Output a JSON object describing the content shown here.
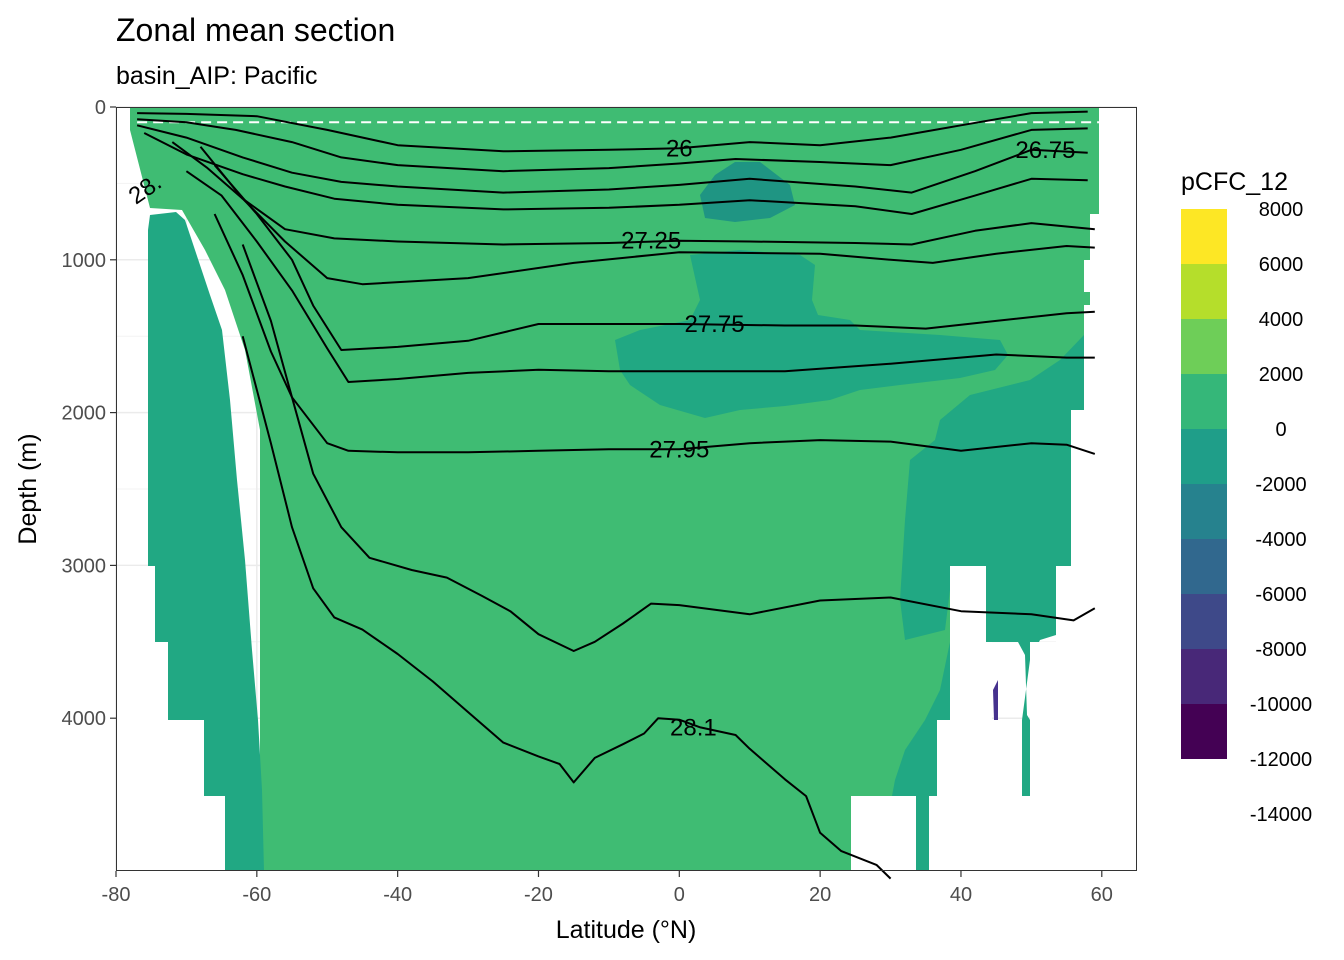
{
  "chart_data": {
    "type": "contour",
    "title": "Zonal mean section",
    "subtitle": "basin_AIP: Pacific",
    "xlabel": "Latitude (°N)",
    "ylabel": "Depth (m)",
    "xlim": [
      -80,
      65
    ],
    "ylim": [
      0,
      5000
    ],
    "y_reversed": true,
    "x_ticks": [
      -80,
      -60,
      -40,
      -20,
      0,
      20,
      40,
      60
    ],
    "y_ticks": [
      0,
      1000,
      2000,
      3000,
      4000
    ],
    "grid": true,
    "legend": {
      "title": "pCFC_12",
      "position": "right",
      "labels": [
        "8000",
        "6000",
        "4000",
        "2000",
        "0",
        "-2000",
        "-4000",
        "-6000",
        "-8000",
        "-10000",
        "-12000",
        "-14000"
      ],
      "colors": [
        "#fde725",
        "#b5de2b",
        "#6ece58",
        "#35b779",
        "#1f9e89",
        "#26828e",
        "#31688e",
        "#3e4989",
        "#482878",
        "#440154"
      ]
    },
    "reference_line": {
      "depth": 100,
      "style": "dashed",
      "color": "#ffffff"
    },
    "density_contours": [
      {
        "label": "26",
        "points": [
          [
            -77,
            40
          ],
          [
            -70,
            45
          ],
          [
            -60,
            60
          ],
          [
            -50,
            150
          ],
          [
            -40,
            250
          ],
          [
            -25,
            290
          ],
          [
            -10,
            280
          ],
          [
            0,
            270
          ],
          [
            10,
            230
          ],
          [
            20,
            250
          ],
          [
            30,
            200
          ],
          [
            40,
            120
          ],
          [
            50,
            40
          ],
          [
            58,
            30
          ]
        ]
      },
      {
        "label": "",
        "points": [
          [
            -77,
            80
          ],
          [
            -70,
            100
          ],
          [
            -63,
            150
          ],
          [
            -55,
            230
          ],
          [
            -48,
            330
          ],
          [
            -40,
            380
          ],
          [
            -25,
            420
          ],
          [
            -10,
            400
          ],
          [
            0,
            370
          ],
          [
            8,
            340
          ],
          [
            20,
            360
          ],
          [
            30,
            380
          ],
          [
            40,
            280
          ],
          [
            50,
            150
          ],
          [
            58,
            140
          ]
        ]
      },
      {
        "label": "26.75",
        "points": [
          [
            -77,
            120
          ],
          [
            -70,
            200
          ],
          [
            -62,
            330
          ],
          [
            -55,
            430
          ],
          [
            -48,
            490
          ],
          [
            -40,
            520
          ],
          [
            -25,
            560
          ],
          [
            -10,
            540
          ],
          [
            0,
            510
          ],
          [
            10,
            470
          ],
          [
            25,
            520
          ],
          [
            33,
            560
          ],
          [
            42,
            420
          ],
          [
            50,
            280
          ],
          [
            58,
            300
          ]
        ]
      },
      {
        "label": "",
        "points": [
          [
            -76,
            170
          ],
          [
            -70,
            310
          ],
          [
            -62,
            440
          ],
          [
            -56,
            520
          ],
          [
            -49,
            600
          ],
          [
            -40,
            640
          ],
          [
            -25,
            670
          ],
          [
            -10,
            660
          ],
          [
            0,
            640
          ],
          [
            10,
            610
          ],
          [
            25,
            650
          ],
          [
            33,
            700
          ],
          [
            42,
            580
          ],
          [
            50,
            470
          ],
          [
            58,
            480
          ]
        ]
      },
      {
        "label": "27.25",
        "points": [
          [
            -72,
            230
          ],
          [
            -67,
            400
          ],
          [
            -62,
            600
          ],
          [
            -56,
            800
          ],
          [
            -49,
            860
          ],
          [
            -40,
            880
          ],
          [
            -25,
            900
          ],
          [
            -10,
            890
          ],
          [
            0,
            875
          ],
          [
            10,
            880
          ],
          [
            25,
            890
          ],
          [
            33,
            900
          ],
          [
            42,
            810
          ],
          [
            50,
            760
          ],
          [
            59,
            800
          ]
        ]
      },
      {
        "label": "",
        "points": [
          [
            -68,
            260
          ],
          [
            -62,
            600
          ],
          [
            -56,
            880
          ],
          [
            -50,
            1120
          ],
          [
            -45,
            1160
          ],
          [
            -30,
            1120
          ],
          [
            -15,
            1020
          ],
          [
            0,
            950
          ],
          [
            20,
            960
          ],
          [
            30,
            1000
          ],
          [
            36,
            1020
          ],
          [
            45,
            960
          ],
          [
            55,
            910
          ],
          [
            59,
            920
          ]
        ]
      },
      {
        "label": "27.75",
        "points": [
          [
            -66,
            380
          ],
          [
            -60,
            700
          ],
          [
            -55,
            1000
          ],
          [
            -52,
            1300
          ],
          [
            -48,
            1590
          ],
          [
            -40,
            1570
          ],
          [
            -30,
            1530
          ],
          [
            -20,
            1420
          ],
          [
            -10,
            1420
          ],
          [
            0,
            1420
          ],
          [
            15,
            1430
          ],
          [
            25,
            1430
          ],
          [
            35,
            1450
          ],
          [
            45,
            1400
          ],
          [
            55,
            1350
          ],
          [
            59,
            1340
          ]
        ]
      },
      {
        "label": "",
        "points": [
          [
            -70,
            420
          ],
          [
            -65,
            580
          ],
          [
            -60,
            880
          ],
          [
            -55,
            1200
          ],
          [
            -50,
            1580
          ],
          [
            -47,
            1800
          ],
          [
            -40,
            1780
          ],
          [
            -30,
            1740
          ],
          [
            -20,
            1720
          ],
          [
            -10,
            1730
          ],
          [
            0,
            1730
          ],
          [
            15,
            1730
          ],
          [
            30,
            1680
          ],
          [
            45,
            1620
          ],
          [
            55,
            1640
          ],
          [
            59,
            1640
          ]
        ]
      },
      {
        "label": "27.95",
        "points": [
          [
            -66,
            700
          ],
          [
            -62,
            1100
          ],
          [
            -58,
            1600
          ],
          [
            -55,
            1900
          ],
          [
            -50,
            2200
          ],
          [
            -47,
            2250
          ],
          [
            -40,
            2260
          ],
          [
            -30,
            2260
          ],
          [
            -20,
            2250
          ],
          [
            -10,
            2240
          ],
          [
            0,
            2240
          ],
          [
            10,
            2200
          ],
          [
            20,
            2180
          ],
          [
            30,
            2190
          ],
          [
            40,
            2250
          ],
          [
            50,
            2200
          ],
          [
            55,
            2210
          ],
          [
            59,
            2270
          ]
        ]
      },
      {
        "label": "",
        "points": [
          [
            -62,
            900
          ],
          [
            -58,
            1400
          ],
          [
            -55,
            1900
          ],
          [
            -52,
            2400
          ],
          [
            -48,
            2750
          ],
          [
            -44,
            2950
          ],
          [
            -38,
            3030
          ],
          [
            -33,
            3080
          ],
          [
            -28,
            3200
          ],
          [
            -24,
            3300
          ],
          [
            -20,
            3450
          ],
          [
            -15,
            3560
          ],
          [
            -12,
            3500
          ],
          [
            -8,
            3380
          ],
          [
            -4,
            3250
          ],
          [
            0,
            3260
          ],
          [
            10,
            3320
          ],
          [
            20,
            3230
          ],
          [
            30,
            3210
          ],
          [
            40,
            3300
          ],
          [
            50,
            3320
          ],
          [
            56,
            3360
          ],
          [
            59,
            3280
          ]
        ]
      },
      {
        "label": "28.1",
        "points": [
          [
            -62,
            1500
          ],
          [
            -58,
            2200
          ],
          [
            -55,
            2750
          ],
          [
            -52,
            3150
          ],
          [
            -49,
            3340
          ],
          [
            -45,
            3420
          ],
          [
            -40,
            3580
          ],
          [
            -35,
            3760
          ],
          [
            -30,
            3960
          ],
          [
            -25,
            4160
          ],
          [
            -20,
            4250
          ],
          [
            -17,
            4300
          ],
          [
            -15,
            4420
          ],
          [
            -12,
            4260
          ],
          [
            -8,
            4170
          ],
          [
            -5,
            4100
          ],
          [
            -3,
            4000
          ],
          [
            0,
            4010
          ],
          [
            3,
            4060
          ],
          [
            8,
            4110
          ],
          [
            10,
            4200
          ],
          [
            15,
            4400
          ],
          [
            18,
            4510
          ],
          [
            20,
            4750
          ],
          [
            23,
            4870
          ],
          [
            28,
            4960
          ],
          [
            30,
            5050
          ]
        ]
      }
    ],
    "colored_regions": [
      {
        "band": "0 to 2000",
        "color": "#3fbc73"
      },
      {
        "band": "-2000 to 0",
        "color": "#21a883"
      },
      {
        "band": "-4000 to -2000",
        "color": "#1f9583"
      },
      {
        "band": "-12000 to -10000",
        "color": "#46328e"
      }
    ]
  }
}
